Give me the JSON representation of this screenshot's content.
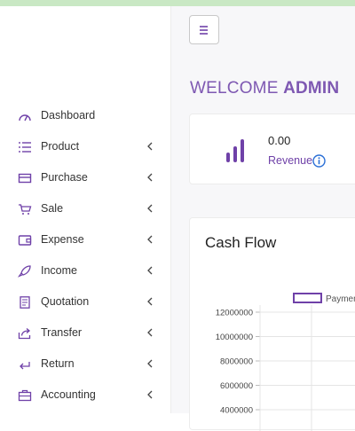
{
  "sidebar": {
    "items": [
      {
        "label": "Dashboard",
        "icon": "speedometer-icon",
        "chevron": false
      },
      {
        "label": "Product",
        "icon": "list-icon",
        "chevron": true
      },
      {
        "label": "Purchase",
        "icon": "card-icon",
        "chevron": true
      },
      {
        "label": "Sale",
        "icon": "cart-icon",
        "chevron": true
      },
      {
        "label": "Expense",
        "icon": "wallet-icon",
        "chevron": true
      },
      {
        "label": "Income",
        "icon": "rocket-icon",
        "chevron": true
      },
      {
        "label": "Quotation",
        "icon": "document-icon",
        "chevron": true
      },
      {
        "label": "Transfer",
        "icon": "share-icon",
        "chevron": true
      },
      {
        "label": "Return",
        "icon": "return-icon",
        "chevron": true
      },
      {
        "label": "Accounting",
        "icon": "briefcase-icon",
        "chevron": true
      }
    ]
  },
  "header": {
    "welcome_prefix": "WELCOME",
    "welcome_user": "ADMIN"
  },
  "revenue_card": {
    "value": "0.00",
    "label": "Revenue"
  },
  "cash_flow": {
    "title": "Cash Flow",
    "chart_data": {
      "type": "line",
      "series": [
        {
          "name": "Payment Received",
          "values": []
        }
      ],
      "y_ticks": [
        "12000000",
        "10000000",
        "8000000",
        "6000000",
        "4000000"
      ],
      "grid": true,
      "legend": "top"
    }
  },
  "colors": {
    "accent": "#7e58b2",
    "icon": "#6f41a8"
  }
}
